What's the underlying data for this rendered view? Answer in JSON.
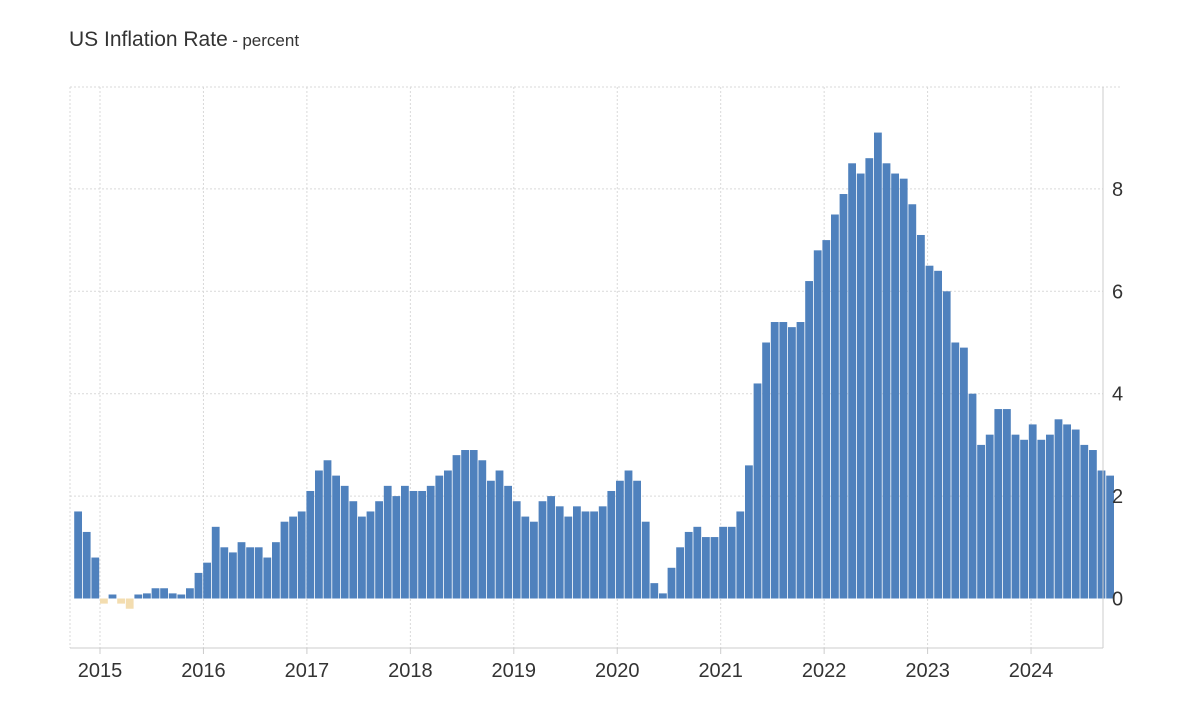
{
  "chart_data": {
    "type": "bar",
    "title": "US Inflation Rate",
    "subtitle": "percent",
    "title_separator": "-",
    "xlabel": "",
    "ylabel": "",
    "ylim": [
      -1,
      10
    ],
    "y_ticks": [
      0,
      2,
      4,
      6,
      8
    ],
    "x_ticks": [
      "2015",
      "2016",
      "2017",
      "2018",
      "2019",
      "2020",
      "2021",
      "2022",
      "2023",
      "2024"
    ],
    "start": "2014-10",
    "frequency": "monthly",
    "grid": true,
    "legend": "none",
    "colors": {
      "positive": "#4f81bd",
      "negative": "#f3ddb0",
      "grid": "#d9d9d9",
      "axis": "#cccccc",
      "text": "#333333"
    },
    "series": [
      {
        "name": "US Inflation Rate",
        "values": [
          1.7,
          1.3,
          0.8,
          -0.1,
          0.0,
          -0.1,
          -0.2,
          0.0,
          0.1,
          0.2,
          0.2,
          0.1,
          0.0,
          0.2,
          0.5,
          0.7,
          1.4,
          1.0,
          0.9,
          1.1,
          1.0,
          1.0,
          0.8,
          1.1,
          1.5,
          1.6,
          1.7,
          2.1,
          2.5,
          2.7,
          2.4,
          2.2,
          1.9,
          1.6,
          1.7,
          1.9,
          2.2,
          2.0,
          2.2,
          2.1,
          2.1,
          2.2,
          2.4,
          2.5,
          2.8,
          2.9,
          2.9,
          2.7,
          2.3,
          2.5,
          2.2,
          1.9,
          1.6,
          1.5,
          1.9,
          2.0,
          1.8,
          1.6,
          1.8,
          1.7,
          1.7,
          1.8,
          2.1,
          2.3,
          2.5,
          2.3,
          1.5,
          0.3,
          0.1,
          0.6,
          1.0,
          1.3,
          1.4,
          1.2,
          1.2,
          1.4,
          1.4,
          1.7,
          2.6,
          4.2,
          5.0,
          5.4,
          5.4,
          5.3,
          5.4,
          6.2,
          6.8,
          7.0,
          7.5,
          7.9,
          8.5,
          8.3,
          8.6,
          9.1,
          8.5,
          8.3,
          8.2,
          7.7,
          7.1,
          6.5,
          6.4,
          6.0,
          5.0,
          4.9,
          4.0,
          3.0,
          3.2,
          3.7,
          3.7,
          3.2,
          3.1,
          3.4,
          3.1,
          3.2,
          3.5,
          3.4,
          3.3,
          3.0,
          2.9,
          2.5,
          2.4
        ]
      }
    ]
  }
}
